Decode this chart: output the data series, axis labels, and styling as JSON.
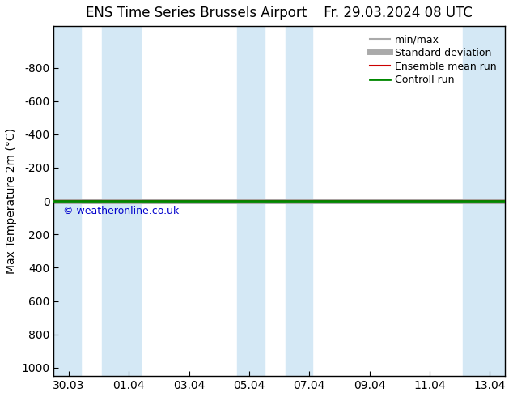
{
  "title_left": "ENS Time Series Brussels Airport",
  "title_right": "Fr. 29.03.2024 08 UTC",
  "ylabel": "Max Temperature 2m (°C)",
  "ylim_top": -1050,
  "ylim_bottom": 1050,
  "yticks": [
    -800,
    -600,
    -400,
    -200,
    0,
    200,
    400,
    600,
    800,
    1000
  ],
  "xlim_start": 0,
  "xlim_end": 15,
  "xtick_positions": [
    0.5,
    2.5,
    4.5,
    6.5,
    8.5,
    10.5,
    12.5,
    14.5
  ],
  "xtick_labels": [
    "30.03",
    "01.04",
    "03.04",
    "05.04",
    "07.04",
    "09.04",
    "11.04",
    "13.04"
  ],
  "shaded_bands": [
    [
      0,
      0.9
    ],
    [
      1.6,
      2.9
    ],
    [
      6.1,
      7.0
    ],
    [
      7.7,
      8.6
    ],
    [
      13.6,
      15
    ]
  ],
  "band_color": "#d4e8f5",
  "line_y": 0,
  "copyright_text": "© weatheronline.co.uk",
  "copyright_color": "#0000cc",
  "legend_items": [
    {
      "label": "min/max",
      "color": "#aaaaaa",
      "lw": 1.5,
      "type": "line"
    },
    {
      "label": "Standard deviation",
      "color": "#aaaaaa",
      "lw": 5,
      "type": "line"
    },
    {
      "label": "Ensemble mean run",
      "color": "#cc0000",
      "lw": 1.5,
      "type": "line"
    },
    {
      "label": "Controll run",
      "color": "#008800",
      "lw": 2,
      "type": "line"
    }
  ],
  "background_color": "#ffffff",
  "plot_bg_color": "#ffffff",
  "title_fontsize": 12,
  "axis_fontsize": 10,
  "tick_fontsize": 10,
  "legend_fontsize": 9
}
